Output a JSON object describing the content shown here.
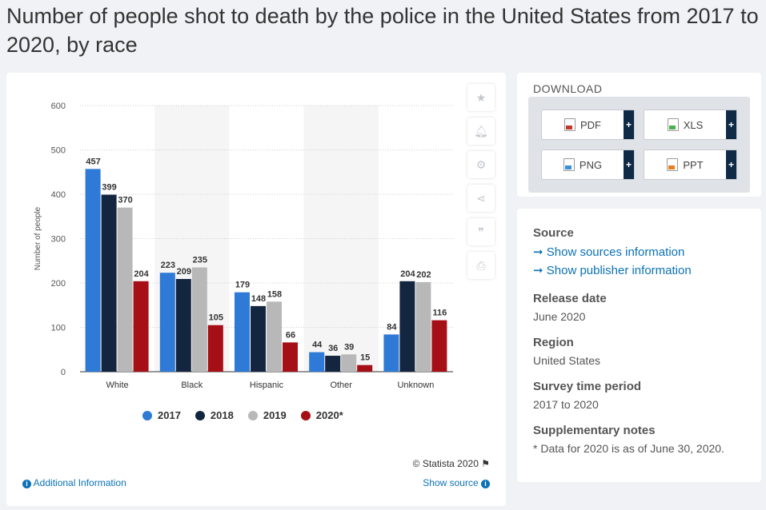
{
  "page": {
    "title": "Number of people shot to death by the police in the United States from 2017 to 2020, by race"
  },
  "chart_data": {
    "type": "bar",
    "categories": [
      "White",
      "Black",
      "Hispanic",
      "Other",
      "Unknown"
    ],
    "series": [
      {
        "name": "2017",
        "color": "#2e7ad6",
        "values": [
          457,
          223,
          179,
          44,
          84
        ]
      },
      {
        "name": "2018",
        "color": "#14263f",
        "values": [
          399,
          209,
          148,
          36,
          204
        ]
      },
      {
        "name": "2019",
        "color": "#b8b8b8",
        "values": [
          370,
          235,
          158,
          39,
          202
        ]
      },
      {
        "name": "2020*",
        "color": "#a50f15",
        "values": [
          204,
          105,
          66,
          15,
          116
        ]
      }
    ],
    "ylabel": "Number of people",
    "ylim": [
      0,
      600
    ],
    "yticks": [
      0,
      100,
      200,
      300,
      400,
      500,
      600
    ],
    "grid": true,
    "legend": "bottom",
    "data_labels": true
  },
  "chart_footer": {
    "credit": "© Statista 2020",
    "additional_info": "Additional Information",
    "show_source": "Show source"
  },
  "tools": [
    "star-icon",
    "bell-icon",
    "gear-icon",
    "share-icon",
    "quote-icon",
    "print-icon"
  ],
  "download": {
    "title": "DOWNLOAD",
    "buttons": [
      {
        "label": "PDF",
        "icon": "pdf-file-icon",
        "color": "#c0392b"
      },
      {
        "label": "XLS",
        "icon": "xls-file-icon",
        "color": "#4caf50"
      },
      {
        "label": "PNG",
        "icon": "png-file-icon",
        "color": "#3a8fd9"
      },
      {
        "label": "PPT",
        "icon": "ppt-file-icon",
        "color": "#e67e22"
      }
    ],
    "plus": "+"
  },
  "info": {
    "source_heading": "Source",
    "show_sources": "Show sources information",
    "show_publisher": "Show publisher information",
    "release_heading": "Release date",
    "release_value": "June 2020",
    "region_heading": "Region",
    "region_value": "United States",
    "period_heading": "Survey time period",
    "period_value": "2017 to 2020",
    "notes_heading": "Supplementary notes",
    "notes_value": "* Data for 2020 is as of June 30, 2020."
  }
}
